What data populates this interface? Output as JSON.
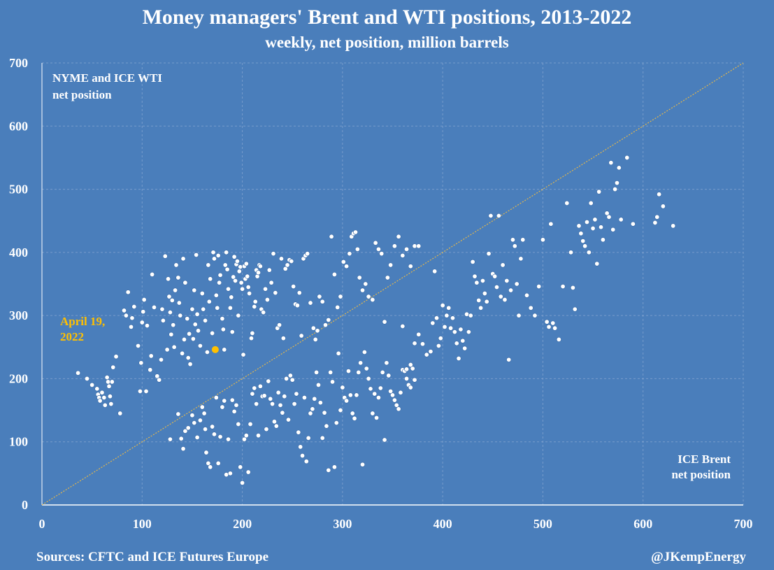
{
  "chart_data": {
    "type": "scatter",
    "title": "Money managers' Brent and WTI positions, 2013-2022",
    "subtitle": "weekly, net position, million barrels",
    "xlabel": "ICE Brent\nnet position",
    "ylabel": "NYME and ICE WTI\nnet position",
    "xlim": [
      0,
      700
    ],
    "ylim": [
      0,
      700
    ],
    "x_ticks": [
      "0",
      "100",
      "200",
      "300",
      "400",
      "500",
      "600",
      "700"
    ],
    "y_ticks": [
      "0",
      "100",
      "200",
      "300",
      "400",
      "500",
      "600",
      "700"
    ],
    "grid": true,
    "reference_line": {
      "from": [
        0,
        0
      ],
      "to": [
        700,
        700
      ],
      "style": "dotted",
      "color": "#e6b84a"
    },
    "highlight": {
      "x": 173,
      "y": 246,
      "label": "April 19,\n2022",
      "color": "#ffc000"
    },
    "point_color": "#ffffff",
    "points": [
      [
        36,
        209
      ],
      [
        45,
        200
      ],
      [
        50,
        190
      ],
      [
        55,
        184
      ],
      [
        56,
        175
      ],
      [
        57,
        170
      ],
      [
        58,
        165
      ],
      [
        60,
        178
      ],
      [
        62,
        170
      ],
      [
        63,
        158
      ],
      [
        65,
        202
      ],
      [
        66,
        195
      ],
      [
        67,
        188
      ],
      [
        68,
        172
      ],
      [
        69,
        160
      ],
      [
        70,
        195
      ],
      [
        71,
        218
      ],
      [
        74,
        235
      ],
      [
        78,
        145
      ],
      [
        82,
        308
      ],
      [
        84,
        300
      ],
      [
        86,
        337
      ],
      [
        89,
        282
      ],
      [
        90,
        296
      ],
      [
        92,
        314
      ],
      [
        96,
        252
      ],
      [
        98,
        180
      ],
      [
        99,
        225
      ],
      [
        100,
        289
      ],
      [
        101,
        306
      ],
      [
        102,
        325
      ],
      [
        104,
        180
      ],
      [
        105,
        284
      ],
      [
        108,
        214
      ],
      [
        109,
        236
      ],
      [
        110,
        365
      ],
      [
        112,
        313
      ],
      [
        115,
        204
      ],
      [
        117,
        198
      ],
      [
        119,
        230
      ],
      [
        120,
        310
      ],
      [
        121,
        292
      ],
      [
        123,
        394
      ],
      [
        125,
        246
      ],
      [
        126,
        358
      ],
      [
        127,
        330
      ],
      [
        128,
        305
      ],
      [
        129,
        270
      ],
      [
        130,
        324
      ],
      [
        131,
        285
      ],
      [
        132,
        250
      ],
      [
        133,
        340
      ],
      [
        134,
        380
      ],
      [
        136,
        360
      ],
      [
        137,
        320
      ],
      [
        138,
        300
      ],
      [
        140,
        240
      ],
      [
        141,
        390
      ],
      [
        142,
        262
      ],
      [
        143,
        352
      ],
      [
        145,
        295
      ],
      [
        146,
        233
      ],
      [
        147,
        271
      ],
      [
        148,
        223
      ],
      [
        150,
        310
      ],
      [
        151,
        263
      ],
      [
        152,
        340
      ],
      [
        153,
        286
      ],
      [
        154,
        396
      ],
      [
        155,
        302
      ],
      [
        156,
        276
      ],
      [
        158,
        252
      ],
      [
        160,
        335
      ],
      [
        161,
        310
      ],
      [
        163,
        292
      ],
      [
        165,
        242
      ],
      [
        166,
        380
      ],
      [
        167,
        322
      ],
      [
        168,
        358
      ],
      [
        170,
        272
      ],
      [
        171,
        400
      ],
      [
        172,
        390
      ],
      [
        174,
        332
      ],
      [
        175,
        312
      ],
      [
        176,
        395
      ],
      [
        177,
        352
      ],
      [
        178,
        364
      ],
      [
        180,
        295
      ],
      [
        181,
        278
      ],
      [
        182,
        246
      ],
      [
        183,
        380
      ],
      [
        184,
        400
      ],
      [
        185,
        373
      ],
      [
        186,
        342
      ],
      [
        188,
        312
      ],
      [
        189,
        329
      ],
      [
        190,
        274
      ],
      [
        191,
        361
      ],
      [
        192,
        393
      ],
      [
        193,
        355
      ],
      [
        194,
        381
      ],
      [
        195,
        386
      ],
      [
        196,
        300
      ],
      [
        197,
        370
      ],
      [
        198,
        377
      ],
      [
        199,
        352
      ],
      [
        200,
        342
      ],
      [
        201,
        238
      ],
      [
        202,
        378
      ],
      [
        203,
        358
      ],
      [
        204,
        382
      ],
      [
        205,
        362
      ],
      [
        206,
        345
      ],
      [
        207,
        335
      ],
      [
        209,
        264
      ],
      [
        210,
        272
      ],
      [
        212,
        314
      ],
      [
        213,
        322
      ],
      [
        214,
        372
      ],
      [
        215,
        362
      ],
      [
        216,
        368
      ],
      [
        217,
        380
      ],
      [
        218,
        378
      ],
      [
        219,
        310
      ],
      [
        221,
        305
      ],
      [
        223,
        342
      ],
      [
        225,
        325
      ],
      [
        227,
        372
      ],
      [
        229,
        352
      ],
      [
        231,
        398
      ],
      [
        233,
        336
      ],
      [
        235,
        280
      ],
      [
        237,
        285
      ],
      [
        239,
        390
      ],
      [
        241,
        264
      ],
      [
        243,
        374
      ],
      [
        245,
        380
      ],
      [
        247,
        388
      ],
      [
        249,
        386
      ],
      [
        251,
        346
      ],
      [
        253,
        318
      ],
      [
        255,
        316
      ],
      [
        257,
        336
      ],
      [
        259,
        268
      ],
      [
        261,
        390
      ],
      [
        263,
        395
      ],
      [
        265,
        398
      ],
      [
        268,
        320
      ],
      [
        271,
        280
      ],
      [
        273,
        262
      ],
      [
        275,
        276
      ],
      [
        277,
        330
      ],
      [
        280,
        322
      ],
      [
        283,
        285
      ],
      [
        286,
        293
      ],
      [
        289,
        425
      ],
      [
        292,
        365
      ],
      [
        295,
        313
      ],
      [
        298,
        330
      ],
      [
        301,
        385
      ],
      [
        304,
        378
      ],
      [
        307,
        398
      ],
      [
        309,
        425
      ],
      [
        311,
        430
      ],
      [
        313,
        432
      ],
      [
        315,
        405
      ],
      [
        317,
        360
      ],
      [
        320,
        340
      ],
      [
        323,
        350
      ],
      [
        326,
        330
      ],
      [
        330,
        325
      ],
      [
        333,
        415
      ],
      [
        336,
        405
      ],
      [
        339,
        398
      ],
      [
        342,
        290
      ],
      [
        345,
        360
      ],
      [
        348,
        380
      ],
      [
        352,
        410
      ],
      [
        356,
        425
      ],
      [
        360,
        395
      ],
      [
        364,
        405
      ],
      [
        368,
        378
      ],
      [
        372,
        410
      ],
      [
        376,
        410
      ],
      [
        128,
        104
      ],
      [
        136,
        144
      ],
      [
        139,
        105
      ],
      [
        141,
        89
      ],
      [
        143,
        117
      ],
      [
        146,
        122
      ],
      [
        150,
        142
      ],
      [
        152,
        130
      ],
      [
        155,
        107
      ],
      [
        158,
        134
      ],
      [
        160,
        155
      ],
      [
        162,
        145
      ],
      [
        163,
        120
      ],
      [
        164,
        83
      ],
      [
        166,
        66
      ],
      [
        168,
        60
      ],
      [
        170,
        124
      ],
      [
        172,
        112
      ],
      [
        174,
        170
      ],
      [
        176,
        66
      ],
      [
        178,
        108
      ],
      [
        180,
        155
      ],
      [
        182,
        165
      ],
      [
        184,
        48
      ],
      [
        186,
        104
      ],
      [
        188,
        50
      ],
      [
        190,
        166
      ],
      [
        192,
        148
      ],
      [
        194,
        158
      ],
      [
        196,
        128
      ],
      [
        198,
        60
      ],
      [
        200,
        35
      ],
      [
        202,
        104
      ],
      [
        204,
        110
      ],
      [
        206,
        52
      ],
      [
        208,
        128
      ],
      [
        210,
        176
      ],
      [
        212,
        185
      ],
      [
        214,
        160
      ],
      [
        216,
        110
      ],
      [
        218,
        188
      ],
      [
        220,
        172
      ],
      [
        222,
        173
      ],
      [
        224,
        120
      ],
      [
        226,
        196
      ],
      [
        228,
        168
      ],
      [
        230,
        160
      ],
      [
        232,
        132
      ],
      [
        234,
        125
      ],
      [
        236,
        178
      ],
      [
        238,
        158
      ],
      [
        240,
        146
      ],
      [
        242,
        172
      ],
      [
        244,
        200
      ],
      [
        246,
        135
      ],
      [
        248,
        205
      ],
      [
        250,
        198
      ],
      [
        252,
        160
      ],
      [
        254,
        176
      ],
      [
        256,
        115
      ],
      [
        258,
        92
      ],
      [
        260,
        78
      ],
      [
        262,
        170
      ],
      [
        264,
        69
      ],
      [
        266,
        106
      ],
      [
        268,
        145
      ],
      [
        270,
        152
      ],
      [
        272,
        168
      ],
      [
        274,
        210
      ],
      [
        276,
        190
      ],
      [
        278,
        162
      ],
      [
        280,
        106
      ],
      [
        282,
        146
      ],
      [
        284,
        125
      ],
      [
        286,
        55
      ],
      [
        288,
        210
      ],
      [
        290,
        195
      ],
      [
        292,
        60
      ],
      [
        294,
        130
      ],
      [
        296,
        240
      ],
      [
        298,
        150
      ],
      [
        300,
        186
      ],
      [
        302,
        170
      ],
      [
        304,
        165
      ],
      [
        306,
        212
      ],
      [
        308,
        174
      ],
      [
        310,
        145
      ],
      [
        312,
        137
      ],
      [
        314,
        174
      ],
      [
        316,
        210
      ],
      [
        318,
        225
      ],
      [
        320,
        64
      ],
      [
        322,
        242
      ],
      [
        324,
        216
      ],
      [
        326,
        200
      ],
      [
        328,
        184
      ],
      [
        330,
        145
      ],
      [
        332,
        176
      ],
      [
        334,
        138
      ],
      [
        336,
        170
      ],
      [
        338,
        185
      ],
      [
        340,
        210
      ],
      [
        342,
        103
      ],
      [
        344,
        225
      ],
      [
        346,
        205
      ],
      [
        348,
        180
      ],
      [
        350,
        174
      ],
      [
        352,
        166
      ],
      [
        354,
        158
      ],
      [
        356,
        152
      ],
      [
        358,
        178
      ],
      [
        360,
        214
      ],
      [
        362,
        212
      ],
      [
        364,
        200
      ],
      [
        366,
        190
      ],
      [
        368,
        186
      ],
      [
        370,
        216
      ],
      [
        372,
        198
      ],
      [
        360,
        283
      ],
      [
        364,
        215
      ],
      [
        368,
        222
      ],
      [
        372,
        256
      ],
      [
        376,
        270
      ],
      [
        380,
        255
      ],
      [
        384,
        238
      ],
      [
        388,
        243
      ],
      [
        390,
        288
      ],
      [
        392,
        370
      ],
      [
        394,
        296
      ],
      [
        396,
        252
      ],
      [
        398,
        264
      ],
      [
        400,
        316
      ],
      [
        402,
        282
      ],
      [
        404,
        300
      ],
      [
        406,
        312
      ],
      [
        408,
        280
      ],
      [
        410,
        296
      ],
      [
        412,
        274
      ],
      [
        414,
        256
      ],
      [
        416,
        232
      ],
      [
        418,
        278
      ],
      [
        420,
        260
      ],
      [
        422,
        248
      ],
      [
        424,
        302
      ],
      [
        426,
        274
      ],
      [
        428,
        300
      ],
      [
        430,
        385
      ],
      [
        432,
        362
      ],
      [
        434,
        352
      ],
      [
        436,
        324
      ],
      [
        438,
        312
      ],
      [
        440,
        355
      ],
      [
        442,
        335
      ],
      [
        444,
        322
      ],
      [
        446,
        398
      ],
      [
        448,
        458
      ],
      [
        450,
        366
      ],
      [
        452,
        362
      ],
      [
        454,
        345
      ],
      [
        456,
        458
      ],
      [
        458,
        330
      ],
      [
        460,
        380
      ],
      [
        462,
        325
      ],
      [
        464,
        355
      ],
      [
        466,
        230
      ],
      [
        468,
        340
      ],
      [
        470,
        420
      ],
      [
        472,
        410
      ],
      [
        474,
        350
      ],
      [
        476,
        300
      ],
      [
        478,
        390
      ],
      [
        480,
        420
      ],
      [
        484,
        332
      ],
      [
        488,
        312
      ],
      [
        492,
        300
      ],
      [
        496,
        346
      ],
      [
        500,
        420
      ],
      [
        504,
        290
      ],
      [
        506,
        282
      ],
      [
        508,
        445
      ],
      [
        510,
        288
      ],
      [
        512,
        280
      ],
      [
        516,
        262
      ],
      [
        520,
        346
      ],
      [
        524,
        478
      ],
      [
        528,
        400
      ],
      [
        530,
        344
      ],
      [
        532,
        310
      ],
      [
        536,
        442
      ],
      [
        538,
        430
      ],
      [
        540,
        418
      ],
      [
        542,
        410
      ],
      [
        544,
        448
      ],
      [
        546,
        400
      ],
      [
        548,
        478
      ],
      [
        550,
        438
      ],
      [
        552,
        452
      ],
      [
        554,
        382
      ],
      [
        556,
        496
      ],
      [
        558,
        440
      ],
      [
        560,
        420
      ],
      [
        564,
        462
      ],
      [
        566,
        456
      ],
      [
        568,
        542
      ],
      [
        570,
        436
      ],
      [
        572,
        500
      ],
      [
        574,
        510
      ],
      [
        576,
        534
      ],
      [
        578,
        452
      ],
      [
        584,
        550
      ],
      [
        590,
        445
      ],
      [
        612,
        447
      ],
      [
        614,
        456
      ],
      [
        616,
        492
      ],
      [
        620,
        473
      ],
      [
        630,
        442
      ]
    ]
  },
  "footer": {
    "source": "Sources: CFTC and ICE Futures Europe",
    "credit": "@JKempEnergy"
  }
}
